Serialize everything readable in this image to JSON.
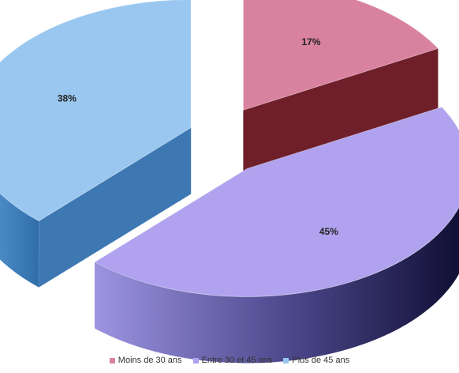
{
  "colors": {
    "moins": "#d982a0",
    "entre": "#b0a2ee",
    "plus": "#99c7ef"
  },
  "chart_data": {
    "type": "pie",
    "variant": "3d-exploded",
    "categories": [
      "Moins de 30 ans",
      "Entre 30 et 45 ans",
      "Plus de 45 ans"
    ],
    "values": [
      17,
      45,
      38
    ],
    "labels": [
      "17%",
      "45%",
      "38%"
    ],
    "legend_position": "bottom"
  }
}
